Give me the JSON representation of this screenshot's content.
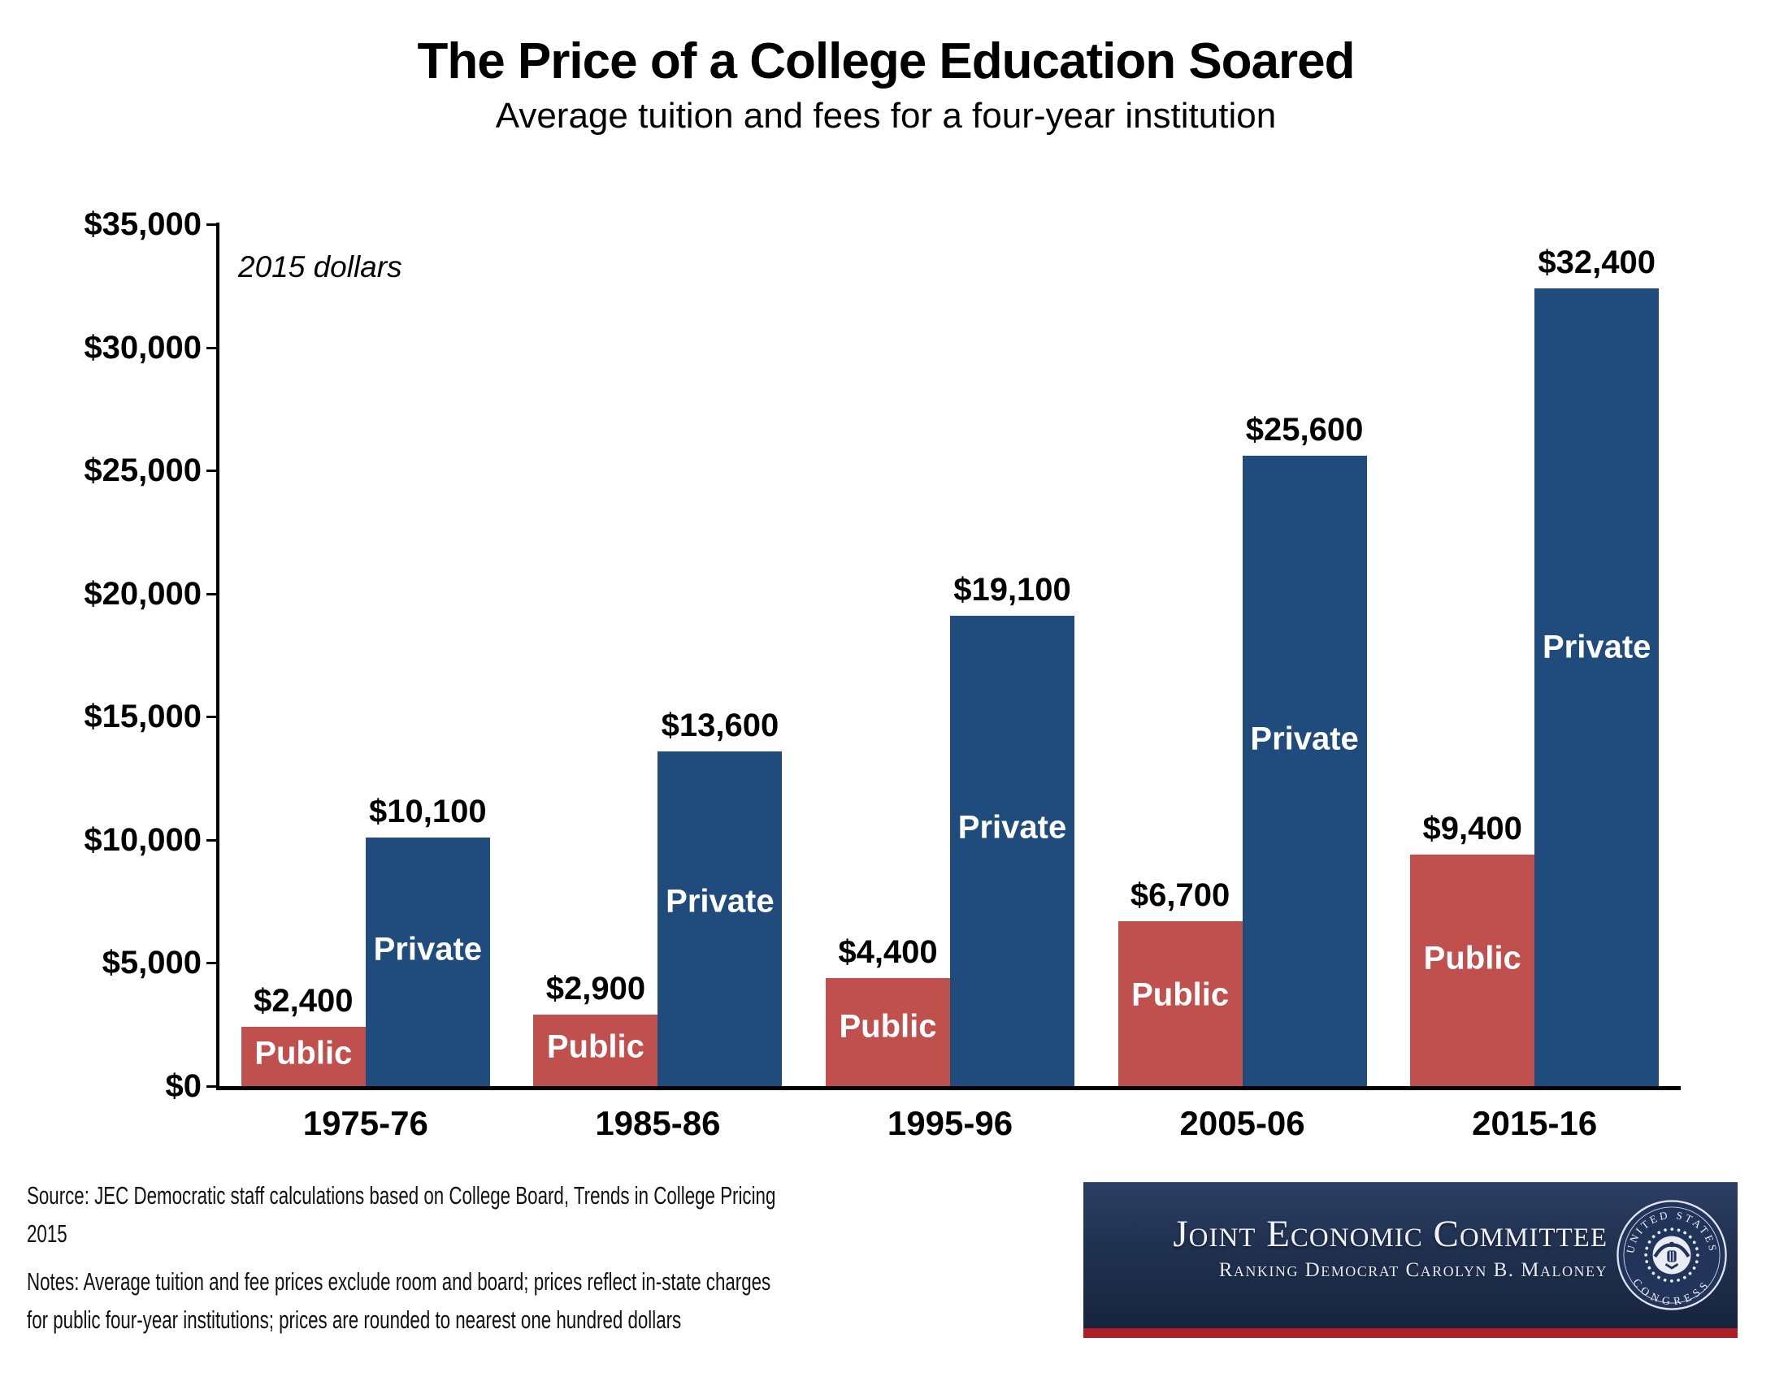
{
  "page": {
    "title": "The Price of a College Education Soared",
    "subtitle": "Average tuition and fees for a four-year institution"
  },
  "chart_data": {
    "type": "bar",
    "title": "The Price of a College Education Soared",
    "subtitle": "Average tuition and fees for a four-year institution",
    "annotation": "2015 dollars",
    "categories": [
      "1975-76",
      "1985-86",
      "1995-96",
      "2005-06",
      "2015-16"
    ],
    "series": [
      {
        "name": "Public",
        "color": "#c0504d",
        "values": [
          2400,
          2900,
          4400,
          6700,
          9400
        ],
        "value_labels": [
          "$2,400",
          "$2,900",
          "$4,400",
          "$6,700",
          "$9,400"
        ]
      },
      {
        "name": "Private",
        "color": "#1f4b7d",
        "values": [
          10100,
          13600,
          19100,
          25600,
          32400
        ],
        "value_labels": [
          "$10,100",
          "$13,600",
          "$19,100",
          "$25,600",
          "$32,400"
        ]
      }
    ],
    "ylim": [
      0,
      35000
    ],
    "y_ticks": [
      {
        "value": 0,
        "label": "$0"
      },
      {
        "value": 5000,
        "label": "$5,000"
      },
      {
        "value": 10000,
        "label": "$10,000"
      },
      {
        "value": 15000,
        "label": "$15,000"
      },
      {
        "value": 20000,
        "label": "$20,000"
      },
      {
        "value": 25000,
        "label": "$25,000"
      },
      {
        "value": 30000,
        "label": "$30,000"
      },
      {
        "value": 35000,
        "label": "$35,000"
      }
    ],
    "grid": false,
    "legend_position": "none",
    "labels_inside_bars": true
  },
  "footer": {
    "source_lines": [
      "Source: JEC Democratic staff calculations based on College Board, Trends in College Pricing",
      "2015"
    ],
    "notes_lines": [
      "Notes: Average tuition and fee prices exclude room and board; prices reflect in-state charges",
      "for public four-year institutions; prices are rounded to nearest one hundred dollars"
    ]
  },
  "banner": {
    "org": "Joint Economic Committee",
    "subtitle": "Ranking Democrat Carolyn B. Maloney",
    "seal_top": "UNITED STATES",
    "seal_bottom": "CONGRESS",
    "colors": {
      "navy": "#1e2f4f",
      "red_stripe": "#ad1f24"
    }
  }
}
